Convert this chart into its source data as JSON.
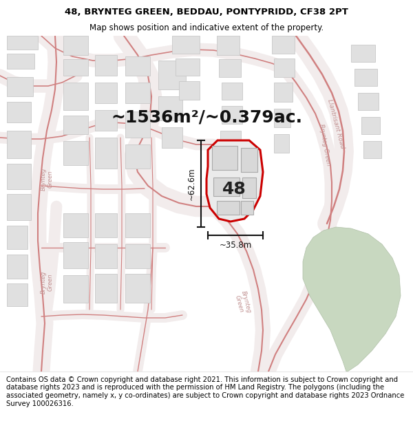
{
  "title_line1": "48, BRYNTEG GREEN, BEDDAU, PONTYPRIDD, CF38 2PT",
  "title_line2": "Map shows position and indicative extent of the property.",
  "area_text": "~1536m²/~0.379ac.",
  "label_number": "48",
  "dim_vertical": "~62.6m",
  "dim_horizontal": "~35.8m",
  "footer_text": "Contains OS data © Crown copyright and database right 2021. This information is subject to Crown copyright and database rights 2023 and is reproduced with the permission of HM Land Registry. The polygons (including the associated geometry, namely x, y co-ordinates) are subject to Crown copyright and database rights 2023 Ordnance Survey 100026316.",
  "map_bg": "#f7f7f7",
  "road_fill": "#f9f0f0",
  "road_outline": "#e8a0a0",
  "road_outline_dark": "#d08080",
  "property_fill": "#eeeeee",
  "property_outline": "#cc0000",
  "building_fill": "#e0e0e0",
  "building_outline": "#c8c8c8",
  "dim_color": "#111111",
  "header_bg": "#ffffff",
  "footer_bg": "#ffffff",
  "title_fontsize": 9.5,
  "subtitle_fontsize": 8.5,
  "area_fontsize": 18,
  "label_fontsize": 18,
  "footer_fontsize": 7.2,
  "fig_width": 6.0,
  "fig_height": 6.25,
  "road_label_color": "#c09090",
  "road_label_size": 6.0
}
